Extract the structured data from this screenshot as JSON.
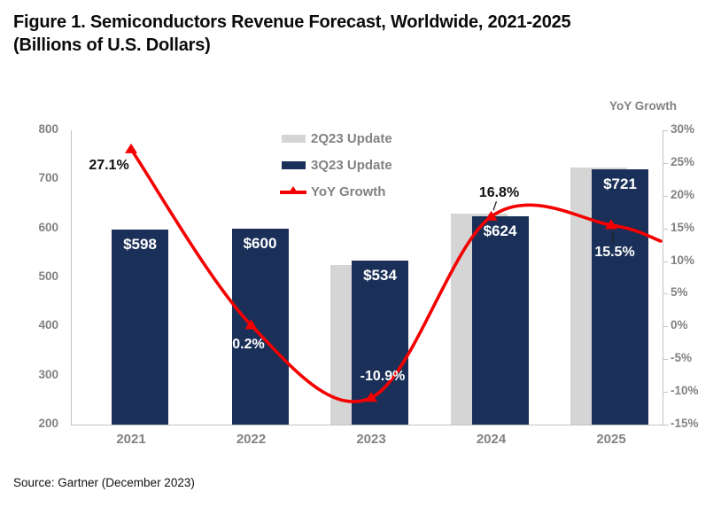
{
  "figure": {
    "title_line1": "Figure 1. Semiconductors Revenue Forecast, Worldwide, 2021-2025",
    "title_line2": "(Billions of U.S. Dollars)",
    "source": "Source: Gartner (December 2023)"
  },
  "chart_data": {
    "type": "combo-bar-line",
    "title": "Semiconductors Revenue Forecast, Worldwide, 2021-2025 (Billions of U.S. Dollars)",
    "categories": [
      "2021",
      "2022",
      "2023",
      "2024",
      "2025"
    ],
    "series": [
      {
        "name": "2Q23 Update",
        "type": "bar",
        "axis": "left",
        "color": "#d5d5d5",
        "values": [
          null,
          null,
          526,
          630,
          725
        ]
      },
      {
        "name": "3Q23 Update",
        "type": "bar",
        "axis": "left",
        "color": "#1b3058",
        "values": [
          598,
          600,
          534,
          624,
          721
        ],
        "data_labels": [
          "$598",
          "$600",
          "$534",
          "$624",
          "$721"
        ],
        "data_label_color": "#ffffff"
      },
      {
        "name": "YoY Growth",
        "type": "line",
        "axis": "right",
        "color": "#f50000",
        "values": [
          27.1,
          0.2,
          -10.9,
          16.8,
          15.5
        ],
        "data_labels": [
          "27.1%",
          "0.2%",
          "-10.9%",
          "16.8%",
          "15.5%"
        ],
        "label_hints": [
          {
            "dx": -25,
            "dy": 19,
            "color": "#111111",
            "leader": false
          },
          {
            "dx": -3,
            "dy": 22,
            "color": "#ffffff",
            "leader": false
          },
          {
            "dx": 13,
            "dy": -24,
            "color": "#ffffff",
            "leader": false
          },
          {
            "dx": 9,
            "dy": -26,
            "color": "#111111",
            "leader": true
          },
          {
            "dx": 4,
            "dy": 31,
            "color": "#ffffff",
            "leader": true
          }
        ]
      }
    ],
    "left_axis": {
      "min": 200,
      "max": 800,
      "step": 100,
      "ticks": [
        800,
        700,
        600,
        500,
        400,
        300,
        200
      ]
    },
    "right_axis": {
      "min": -15,
      "max": 30,
      "step": 5,
      "title": "YoY Growth",
      "tick_values": [
        30,
        25,
        20,
        15,
        10,
        5,
        0,
        -5,
        -10,
        -15
      ],
      "tick_labels": [
        "30%",
        "25%",
        "20%",
        "15%",
        "10%",
        "5%",
        "0%",
        "-5%",
        "-10%",
        "-15%"
      ]
    },
    "legend": {
      "position": "upper-center",
      "items": [
        "2Q23 Update",
        "3Q23 Update",
        "YoY Growth"
      ]
    },
    "grid": "off"
  },
  "colors": {
    "axis_text": "#828282",
    "axis_line": "#c4c4c4",
    "bar_2q23": "#d5d5d5",
    "bar_3q23": "#1b3058",
    "yoy_line": "#f50000",
    "title_text": "#0b0b0b"
  }
}
